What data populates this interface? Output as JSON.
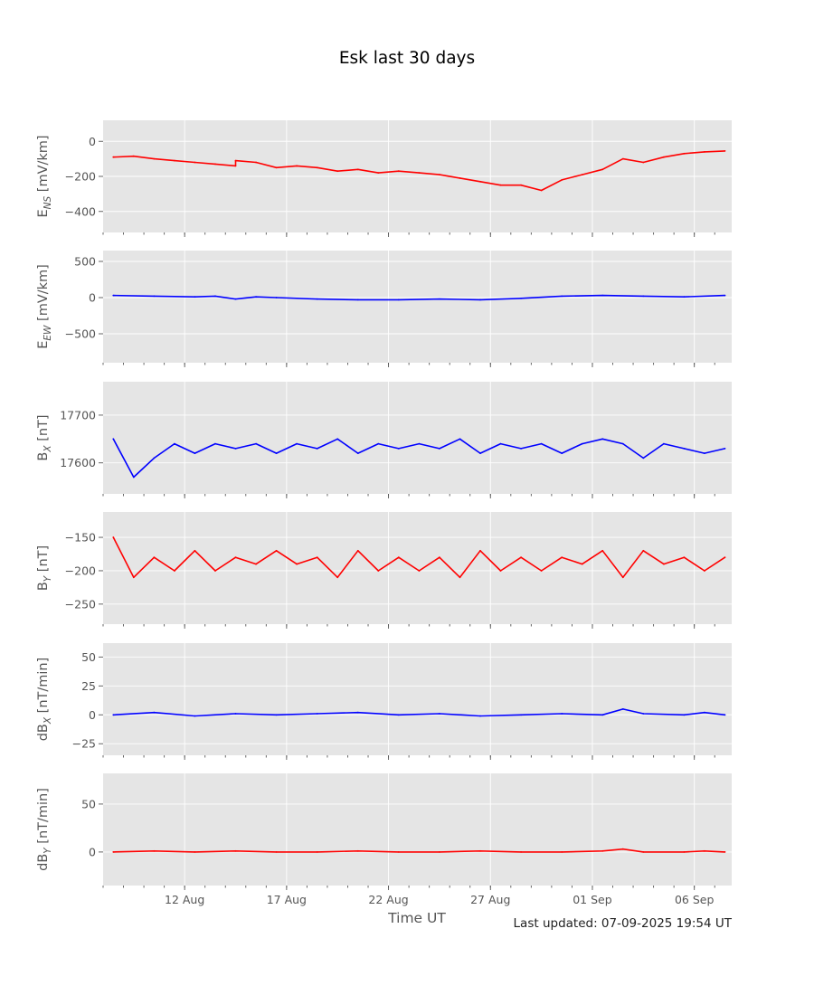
{
  "title": "Esk last 30 days",
  "footer": "Last updated: 07-09-2025 19:54 UT",
  "chart_data": {
    "type": "line",
    "title": "Esk last 30 days",
    "xlabel": "Time UT",
    "x_range": [
      "2025-08-08",
      "2025-09-07"
    ],
    "x_ticks": [
      {
        "date": "2025-08-12",
        "label": "12 Aug"
      },
      {
        "date": "2025-08-17",
        "label": "17 Aug"
      },
      {
        "date": "2025-08-22",
        "label": "22 Aug"
      },
      {
        "date": "2025-08-27",
        "label": "27 Aug"
      },
      {
        "date": "2025-09-01",
        "label": "01 Sep"
      },
      {
        "date": "2025-09-06",
        "label": "06 Sep"
      }
    ],
    "grid": true,
    "panels": [
      {
        "id": "ens",
        "ylabel_main": "E",
        "ylabel_sub": "NS",
        "ylabel_rest": " [mV/km]",
        "color": "#ff0000",
        "ylim": [
          -520,
          120
        ],
        "yticks": [
          0,
          -200,
          -400
        ],
        "ytick_labels": [
          "0",
          "−200",
          "−400"
        ],
        "x": [
          "2025-08-08",
          "2025-08-09",
          "2025-08-10",
          "2025-08-11",
          "2025-08-12",
          "2025-08-13",
          "2025-08-14",
          "2025-08-14",
          "2025-08-15",
          "2025-08-16",
          "2025-08-17",
          "2025-08-18",
          "2025-08-19",
          "2025-08-20",
          "2025-08-21",
          "2025-08-22",
          "2025-08-23",
          "2025-08-24",
          "2025-08-25",
          "2025-08-26",
          "2025-08-27",
          "2025-08-28",
          "2025-08-29",
          "2025-08-30",
          "2025-08-31",
          "2025-09-01",
          "2025-09-02",
          "2025-09-03",
          "2025-09-04",
          "2025-09-05",
          "2025-09-06",
          "2025-09-07"
        ],
        "y": [
          -90,
          -85,
          -100,
          -110,
          -120,
          -130,
          -140,
          -110,
          -120,
          -150,
          -140,
          -150,
          -170,
          -160,
          -180,
          -170,
          -180,
          -190,
          -210,
          -230,
          -250,
          -250,
          -280,
          -220,
          -190,
          -160,
          -100,
          -120,
          -90,
          -70,
          -60,
          -55
        ]
      },
      {
        "id": "eew",
        "ylabel_main": "E",
        "ylabel_sub": "EW",
        "ylabel_rest": " [mV/km]",
        "color": "#0000ff",
        "ylim": [
          -900,
          650
        ],
        "yticks": [
          500,
          0,
          -500
        ],
        "ytick_labels": [
          "500",
          "0",
          "−500"
        ],
        "x": [
          "2025-08-08",
          "2025-08-10",
          "2025-08-12",
          "2025-08-13",
          "2025-08-14",
          "2025-08-15",
          "2025-08-16",
          "2025-08-18",
          "2025-08-20",
          "2025-08-22",
          "2025-08-24",
          "2025-08-26",
          "2025-08-28",
          "2025-08-30",
          "2025-09-01",
          "2025-09-03",
          "2025-09-05",
          "2025-09-07"
        ],
        "y": [
          30,
          20,
          10,
          20,
          -20,
          10,
          0,
          -20,
          -30,
          -30,
          -20,
          -30,
          -10,
          20,
          30,
          20,
          10,
          30
        ]
      },
      {
        "id": "bx",
        "ylabel_main": "B",
        "ylabel_sub": "X",
        "ylabel_rest": " [nT]",
        "color": "#0000ff",
        "ylim": [
          17535,
          17770
        ],
        "yticks": [
          17700,
          17600
        ],
        "ytick_labels": [
          "17700",
          "17600"
        ],
        "x": [
          "2025-08-08",
          "2025-08-09",
          "2025-08-10",
          "2025-08-11",
          "2025-08-12",
          "2025-08-13",
          "2025-08-14",
          "2025-08-15",
          "2025-08-16",
          "2025-08-17",
          "2025-08-18",
          "2025-08-19",
          "2025-08-20",
          "2025-08-21",
          "2025-08-22",
          "2025-08-23",
          "2025-08-24",
          "2025-08-25",
          "2025-08-26",
          "2025-08-27",
          "2025-08-28",
          "2025-08-29",
          "2025-08-30",
          "2025-08-31",
          "2025-09-01",
          "2025-09-02",
          "2025-09-03",
          "2025-09-04",
          "2025-09-05",
          "2025-09-06",
          "2025-09-07"
        ],
        "y": [
          17650,
          17570,
          17610,
          17640,
          17620,
          17640,
          17630,
          17640,
          17620,
          17640,
          17630,
          17650,
          17620,
          17640,
          17630,
          17640,
          17630,
          17650,
          17620,
          17640,
          17630,
          17640,
          17620,
          17640,
          17650,
          17640,
          17610,
          17640,
          17630,
          17620,
          17630
        ]
      },
      {
        "id": "by",
        "ylabel_main": "B",
        "ylabel_sub": "Y",
        "ylabel_rest": " [nT]",
        "color": "#ff0000",
        "ylim": [
          -280,
          -112
        ],
        "yticks": [
          -150,
          -200,
          -250
        ],
        "ytick_labels": [
          "−150",
          "−200",
          "−250"
        ],
        "x": [
          "2025-08-08",
          "2025-08-09",
          "2025-08-10",
          "2025-08-11",
          "2025-08-12",
          "2025-08-13",
          "2025-08-14",
          "2025-08-15",
          "2025-08-16",
          "2025-08-17",
          "2025-08-18",
          "2025-08-19",
          "2025-08-20",
          "2025-08-21",
          "2025-08-22",
          "2025-08-23",
          "2025-08-24",
          "2025-08-25",
          "2025-08-26",
          "2025-08-27",
          "2025-08-28",
          "2025-08-29",
          "2025-08-30",
          "2025-08-31",
          "2025-09-01",
          "2025-09-02",
          "2025-09-03",
          "2025-09-04",
          "2025-09-05",
          "2025-09-06",
          "2025-09-07"
        ],
        "y": [
          -150,
          -210,
          -180,
          -200,
          -170,
          -200,
          -180,
          -190,
          -170,
          -190,
          -180,
          -210,
          -170,
          -200,
          -180,
          -200,
          -180,
          -210,
          -170,
          -200,
          -180,
          -200,
          -180,
          -190,
          -170,
          -210,
          -170,
          -190,
          -180,
          -200,
          -180
        ]
      },
      {
        "id": "dbx",
        "ylabel_main": "dB",
        "ylabel_sub": "X",
        "ylabel_rest": " [nT/min]",
        "color": "#0000ff",
        "ylim": [
          -35,
          62
        ],
        "yticks": [
          50,
          25,
          0,
          -25
        ],
        "ytick_labels": [
          "50",
          "25",
          "0",
          "−25"
        ],
        "x": [
          "2025-08-08",
          "2025-08-10",
          "2025-08-12",
          "2025-08-14",
          "2025-08-16",
          "2025-08-18",
          "2025-08-20",
          "2025-08-22",
          "2025-08-24",
          "2025-08-26",
          "2025-08-28",
          "2025-08-30",
          "2025-09-01",
          "2025-09-02",
          "2025-09-03",
          "2025-09-05",
          "2025-09-06",
          "2025-09-07"
        ],
        "y": [
          0,
          2,
          -1,
          1,
          0,
          1,
          2,
          0,
          1,
          -1,
          0,
          1,
          0,
          5,
          1,
          0,
          2,
          0
        ]
      },
      {
        "id": "dby",
        "ylabel_main": "dB",
        "ylabel_sub": "Y",
        "ylabel_rest": " [nT/min]",
        "color": "#ff0000",
        "ylim": [
          -35,
          82
        ],
        "yticks": [
          50,
          0
        ],
        "ytick_labels": [
          "50",
          "0"
        ],
        "x": [
          "2025-08-08",
          "2025-08-10",
          "2025-08-12",
          "2025-08-14",
          "2025-08-16",
          "2025-08-18",
          "2025-08-20",
          "2025-08-22",
          "2025-08-24",
          "2025-08-26",
          "2025-08-28",
          "2025-08-30",
          "2025-09-01",
          "2025-09-02",
          "2025-09-03",
          "2025-09-05",
          "2025-09-06",
          "2025-09-07"
        ],
        "y": [
          0,
          1,
          0,
          1,
          0,
          0,
          1,
          0,
          0,
          1,
          0,
          0,
          1,
          3,
          0,
          0,
          1,
          0
        ]
      }
    ]
  }
}
